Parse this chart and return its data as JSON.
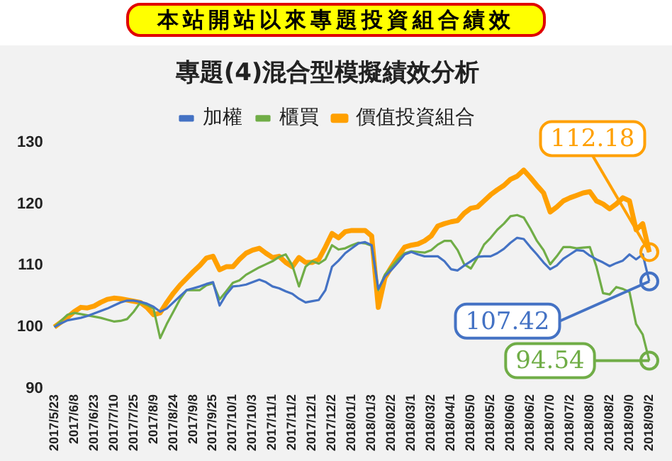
{
  "chart_data": {
    "type": "line",
    "title": "專題(4)混合型模擬績效分析",
    "annotations": [
      "本站開站以來專題投資組合績效",
      {
        "text": "112.18",
        "x": "2018/09/2",
        "y": 112.18
      },
      {
        "text": "107.42",
        "x": "2018/09/2",
        "y": 107.42
      },
      {
        "text": "94.54",
        "x": "2018/09/2",
        "y": 94.54
      }
    ],
    "categories": [
      "2017/5/23",
      null,
      null,
      "2017/6/8",
      null,
      null,
      "2017/6/23",
      null,
      null,
      "2017/7/10",
      null,
      null,
      "2017/7/25",
      null,
      null,
      "2017/8/9",
      null,
      null,
      "2017/8/24",
      null,
      null,
      "2017/9/8",
      null,
      null,
      "2017/9/25",
      null,
      null,
      "2017/10/1",
      null,
      null,
      "2017/10/3",
      null,
      null,
      "2017/11/1",
      null,
      null,
      "2017/11/2",
      null,
      null,
      "2017/12/1",
      null,
      null,
      "2017/12/2",
      null,
      null,
      "2018/01/1",
      null,
      null,
      "2018/01/3",
      null,
      null,
      "2018/02/2",
      null,
      null,
      "2018/03/1",
      null,
      null,
      "2018/03/2",
      null,
      null,
      "2018/04/1",
      null,
      null,
      "2018/05/0",
      null,
      null,
      "2018/05/2",
      null,
      null,
      "2018/06/0",
      null,
      null,
      "2018/06/2",
      null,
      null,
      "2018/07/0",
      null,
      null,
      "2018/07/2",
      null,
      null,
      "2018/08/0",
      null,
      null,
      "2018/08/2",
      null,
      null,
      "2018/09/0",
      null,
      null,
      "2018/09/2"
    ],
    "series": [
      {
        "name": "加權",
        "color": "#4472c4",
        "values": [
          100,
          100.6,
          101.1,
          101.3,
          101.5,
          101.8,
          102.2,
          102.6,
          103,
          103.5,
          104,
          104.3,
          104.3,
          104.1,
          103.8,
          103.3,
          102.5,
          103,
          104,
          105,
          106,
          106.3,
          106.6,
          107,
          107.3,
          103.5,
          105.3,
          106.6,
          106.7,
          106.9,
          107.3,
          107.7,
          107.3,
          106.6,
          106.3,
          105.8,
          105.4,
          104.6,
          104,
          104.2,
          104.4,
          106,
          109.8,
          110.8,
          112,
          112.8,
          113.6,
          113.8,
          113.3,
          106.2,
          108.2,
          109.3,
          110.5,
          111.8,
          112.2,
          111.8,
          111.5,
          111.5,
          111.5,
          110.7,
          109.4,
          109.2,
          110,
          110.7,
          111.4,
          111.5,
          111.5,
          112,
          112.7,
          113.7,
          114.5,
          114.3,
          113,
          111.8,
          110.5,
          109.4,
          110,
          111.1,
          111.8,
          112.5,
          112.4,
          111.6,
          111,
          110.5,
          109.9,
          110.4,
          110.8,
          111.8,
          111,
          111.8,
          107.42
        ]
      },
      {
        "name": "櫃買",
        "color": "#70ad47",
        "values": [
          100,
          101,
          102,
          102.3,
          102.1,
          101.9,
          101.7,
          101.5,
          101.2,
          100.9,
          101,
          101.3,
          102.5,
          104,
          103.6,
          103,
          98.2,
          100.5,
          102.5,
          104.5,
          106,
          106,
          106,
          106.8,
          107.1,
          104.5,
          105.8,
          107.2,
          107.6,
          108.5,
          109.1,
          109.7,
          110.2,
          110.7,
          111.4,
          111.8,
          110,
          106.6,
          109.8,
          110.7,
          110.3,
          111,
          113.3,
          112.6,
          112.8,
          113.3,
          113.7,
          113.6,
          113.2,
          106,
          108.5,
          109.8,
          111,
          112,
          112.3,
          112.2,
          112.1,
          112.5,
          113.4,
          114,
          114,
          112.5,
          110.2,
          109.5,
          111.3,
          113.4,
          114.5,
          115.8,
          116.8,
          118,
          118.2,
          117.8,
          116,
          114,
          112.5,
          110.2,
          111.5,
          113,
          113,
          112.8,
          112.9,
          113,
          109.8,
          105.5,
          105.3,
          106.5,
          106.2,
          105.7,
          100.5,
          98.8,
          94.54
        ]
      },
      {
        "name": "價值投資組合",
        "color": "#ffa000",
        "values": [
          100,
          100.8,
          101.6,
          102.5,
          103.2,
          103.1,
          103.4,
          104,
          104.5,
          104.7,
          104.6,
          104.4,
          104.2,
          104,
          103.2,
          102,
          102.3,
          104,
          105.5,
          106.8,
          107.9,
          109,
          110,
          111.2,
          111.5,
          109.3,
          109.8,
          109.8,
          111,
          112,
          112.5,
          112.8,
          112,
          111.3,
          111.5,
          110.5,
          109.8,
          111.3,
          110.5,
          110.5,
          111,
          113,
          115.2,
          114.5,
          115.5,
          115.7,
          115.7,
          115.7,
          114.8,
          103.2,
          108,
          109.8,
          111.5,
          113,
          113.3,
          113.5,
          114,
          114.8,
          116.4,
          116.8,
          117.1,
          117.3,
          118.5,
          119.3,
          119.5,
          120.5,
          121.5,
          122.3,
          123,
          124,
          124.5,
          125.5,
          124.3,
          123,
          121.8,
          118.7,
          119.5,
          120.5,
          121,
          121.4,
          121.8,
          122,
          120.5,
          120,
          119.2,
          120,
          121,
          120.5,
          115.8,
          116.8,
          112.18
        ]
      }
    ],
    "ylim": [
      90,
      130
    ],
    "yticks": [
      90,
      100,
      110,
      120,
      130
    ],
    "grid": false,
    "legend": "top",
    "marker": "none",
    "line_style": "solid"
  }
}
